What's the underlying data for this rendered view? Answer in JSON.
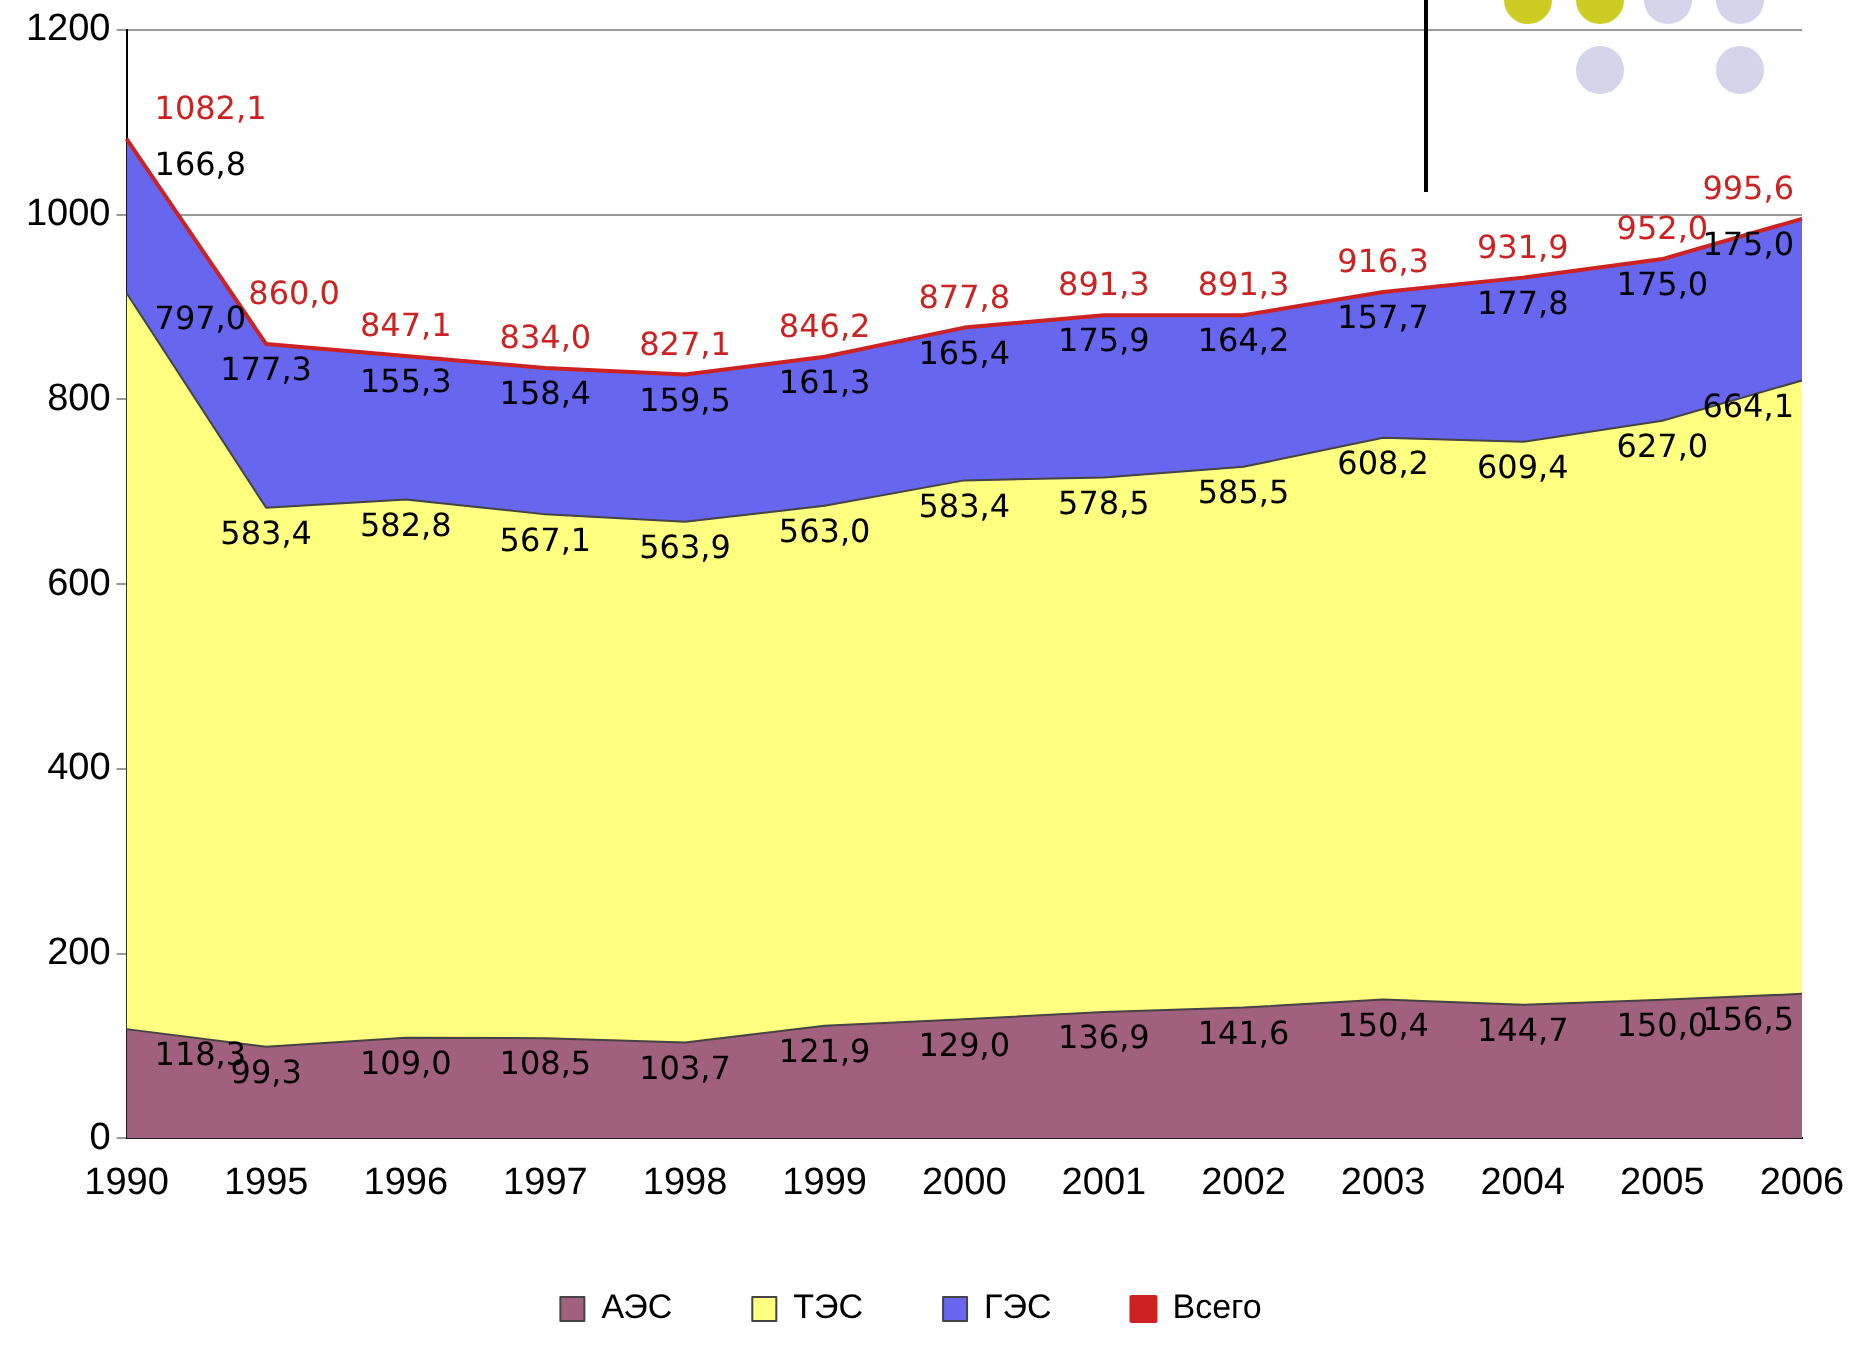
{
  "chart_data": {
    "type": "area",
    "stacked": true,
    "categories": [
      "1990",
      "1995",
      "1996",
      "1997",
      "1998",
      "1999",
      "2000",
      "2001",
      "2002",
      "2003",
      "2004",
      "2005",
      "2006"
    ],
    "series": [
      {
        "name": "АЭС",
        "color": "#a0607e",
        "values": [
          118.3,
          99.3,
          109.0,
          108.5,
          103.7,
          121.9,
          129.0,
          136.9,
          141.6,
          150.4,
          144.7,
          150.0,
          156.5
        ],
        "value_labels": [
          "118,3",
          "99,3",
          "109,0",
          "108,5",
          "103,7",
          "121,9",
          "129,0",
          "136,9",
          "141,6",
          "150,4",
          "144,7",
          "150,0",
          "156,5"
        ]
      },
      {
        "name": "ТЭС",
        "color": "#ffff80",
        "values": [
          797.0,
          583.4,
          582.8,
          567.1,
          563.9,
          563.0,
          583.4,
          578.5,
          585.5,
          608.2,
          609.4,
          627.0,
          664.1
        ],
        "value_labels": [
          "797,0",
          "583,4",
          "582,8",
          "567,1",
          "563,9",
          "563,0",
          "583,4",
          "578,5",
          "585,5",
          "608,2",
          "609,4",
          "627,0",
          "664,1"
        ]
      },
      {
        "name": "ГЭС",
        "color": "#6666ee",
        "values": [
          166.8,
          177.3,
          155.3,
          158.4,
          159.5,
          161.3,
          165.4,
          175.9,
          164.2,
          157.7,
          177.8,
          175.0,
          175.0
        ],
        "value_labels": [
          "166,8",
          "177,3",
          "155,3",
          "158,4",
          "159,5",
          "161,3",
          "165,4",
          "175,9",
          "164,2",
          "157,7",
          "177,8",
          "175,0",
          "175,0"
        ]
      },
      {
        "name": "Всего",
        "type": "line",
        "color": "#cc2222",
        "values": [
          1082.1,
          860.0,
          847.1,
          834.0,
          827.1,
          846.2,
          877.8,
          891.3,
          891.3,
          916.3,
          931.9,
          952.0,
          995.6
        ],
        "value_labels": [
          "1082,1",
          "860,0",
          "847,1",
          "834,0",
          "827,1",
          "846,2",
          "877,8",
          "891,3",
          "891,3",
          "916,3",
          "931,9",
          "952,0",
          "995,6"
        ]
      }
    ],
    "ylim": [
      0,
      1200
    ],
    "yticks": [
      0,
      200,
      400,
      600,
      800,
      1000,
      1200
    ],
    "grid": "y",
    "legend": "bottom",
    "marker": "none"
  }
}
